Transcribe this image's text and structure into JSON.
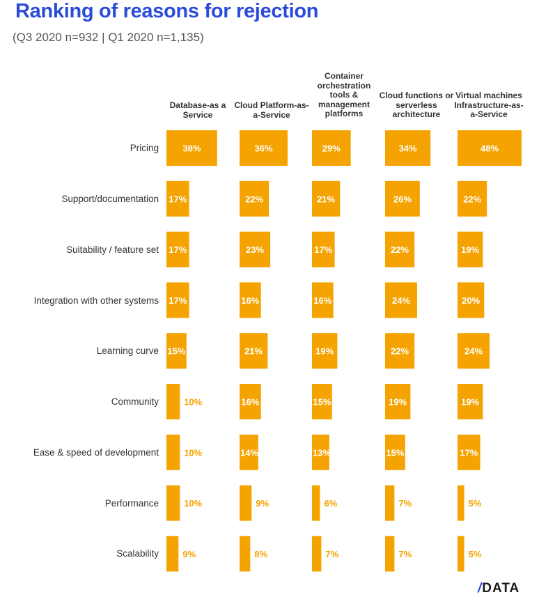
{
  "title": "Ranking of reasons for rejection",
  "subtitle": "(Q3 2020 n=932 | Q1 2020 n=1,135)",
  "brand": {
    "slash": "/",
    "name": "DATA"
  },
  "colors": {
    "bar": "#f5a300",
    "title": "#2b4cd8",
    "label_inside": "#ffffff",
    "label_outside": "#f5a300"
  },
  "chart_data": {
    "type": "bar",
    "title": "Ranking of reasons for rejection",
    "subtitle": "(Q3 2020 n=932 | Q1 2020 n=1,135)",
    "categories": [
      "Pricing",
      "Support/documentation",
      "Suitability / feature set",
      "Integration with other systems",
      "Learning curve",
      "Community",
      "Ease & speed of development",
      "Performance",
      "Scalability"
    ],
    "series": [
      {
        "name": "Database-as a Service",
        "values": [
          38,
          17,
          17,
          17,
          15,
          10,
          10,
          10,
          9
        ]
      },
      {
        "name": "Cloud Platform-as-a-Service",
        "values": [
          36,
          22,
          23,
          16,
          21,
          16,
          14,
          9,
          8
        ]
      },
      {
        "name": "Container orchestration tools & management platforms",
        "values": [
          29,
          21,
          17,
          16,
          19,
          15,
          13,
          6,
          7
        ]
      },
      {
        "name": "Cloud functions or serverless architecture",
        "values": [
          34,
          26,
          22,
          24,
          22,
          19,
          15,
          7,
          7
        ]
      },
      {
        "name": "Virtual machines Infrastructure-as-a-Service",
        "values": [
          48,
          22,
          19,
          20,
          24,
          19,
          17,
          5,
          5
        ]
      }
    ],
    "unit": "%",
    "ylim": [
      0,
      50
    ]
  }
}
